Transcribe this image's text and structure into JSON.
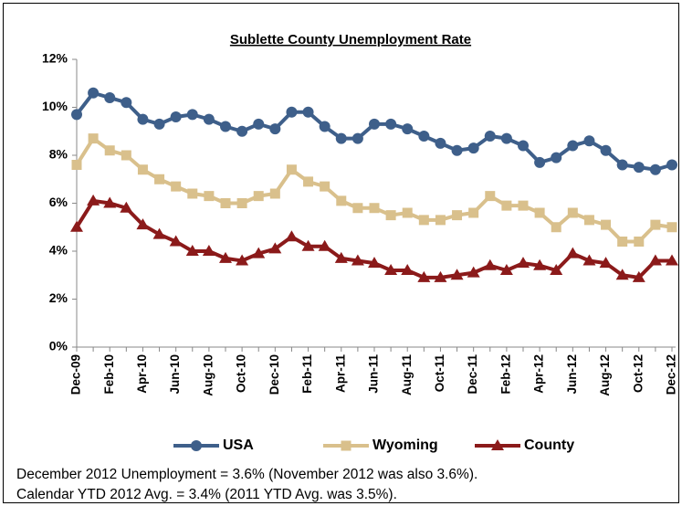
{
  "chart_data": {
    "type": "line",
    "title": "Sublette County Unemployment Rate",
    "categories": [
      "Dec-09",
      null,
      "Feb-10",
      null,
      "Apr-10",
      null,
      "Jun-10",
      null,
      "Aug-10",
      null,
      "Oct-10",
      null,
      "Dec-10",
      null,
      "Feb-11",
      null,
      "Apr-11",
      null,
      "Jun-11",
      null,
      "Aug-11",
      null,
      "Oct-11",
      null,
      "Dec-11",
      null,
      "Feb-12",
      null,
      "Apr-12",
      null,
      "Jun-12",
      null,
      "Aug-12",
      null,
      "Oct-12",
      null,
      "Dec-12"
    ],
    "series": [
      {
        "name": "USA",
        "color": "#3e5f8a",
        "marker": "circle",
        "values": [
          9.7,
          10.6,
          10.4,
          10.2,
          9.5,
          9.3,
          9.6,
          9.7,
          9.5,
          9.2,
          9.0,
          9.3,
          9.1,
          9.8,
          9.8,
          9.2,
          8.7,
          8.7,
          9.3,
          9.3,
          9.1,
          8.8,
          8.5,
          8.2,
          8.3,
          8.8,
          8.7,
          8.4,
          7.7,
          7.9,
          8.4,
          8.6,
          8.2,
          7.6,
          7.5,
          7.4,
          7.6
        ]
      },
      {
        "name": "Wyoming",
        "color": "#d9c08c",
        "marker": "square",
        "values": [
          7.6,
          8.7,
          8.2,
          8.0,
          7.4,
          7.0,
          6.7,
          6.4,
          6.3,
          6.0,
          6.0,
          6.3,
          6.4,
          7.4,
          6.9,
          6.7,
          6.1,
          5.8,
          5.8,
          5.5,
          5.6,
          5.3,
          5.3,
          5.5,
          5.6,
          6.3,
          5.9,
          5.9,
          5.6,
          5.0,
          5.6,
          5.3,
          5.1,
          4.4,
          4.4,
          5.1,
          5.0
        ]
      },
      {
        "name": "County",
        "color": "#8b1a1a",
        "marker": "triangle",
        "values": [
          5.0,
          6.1,
          6.0,
          5.8,
          5.1,
          4.7,
          4.4,
          4.0,
          4.0,
          3.7,
          3.6,
          3.9,
          4.1,
          4.6,
          4.2,
          4.2,
          3.7,
          3.6,
          3.5,
          3.2,
          3.2,
          2.9,
          2.9,
          3.0,
          3.1,
          3.4,
          3.2,
          3.5,
          3.4,
          3.2,
          3.9,
          3.6,
          3.5,
          3.0,
          2.9,
          3.6,
          3.6
        ]
      }
    ],
    "ylim": [
      0,
      12
    ],
    "yticks": [
      {
        "value": 0,
        "label": "0%"
      },
      {
        "value": 2,
        "label": "2%"
      },
      {
        "value": 4,
        "label": "4%"
      },
      {
        "value": 6,
        "label": "6%"
      },
      {
        "value": 8,
        "label": "8%"
      },
      {
        "value": 10,
        "label": "10%"
      },
      {
        "value": 12,
        "label": "12%"
      }
    ],
    "grid": false,
    "legend": "bottom",
    "notes": [
      "December 2012 Unemployment = 3.6% (November 2012 was also 3.6%).",
      "Calendar YTD 2012 Avg. = 3.4% (2011 YTD Avg. was 3.5%)."
    ]
  }
}
